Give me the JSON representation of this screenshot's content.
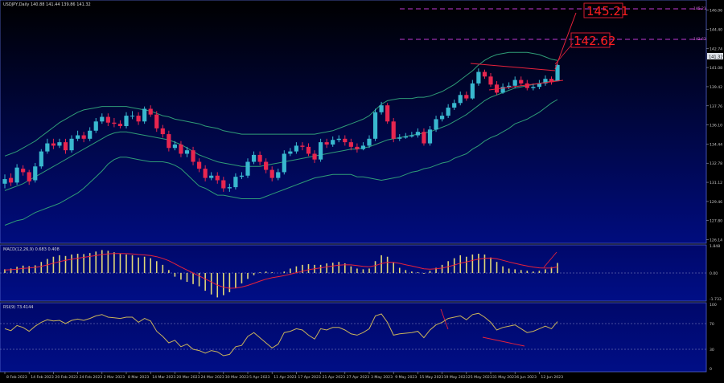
{
  "header": {
    "title": "USDJPY,Daily  140.88 141.44 139.86 141.32"
  },
  "macd_label": "MACD(12,26,9) 0.683 0.408",
  "rsi_label": "RSI(9) 73.4144",
  "annotations": {
    "target_1": "145.21",
    "target_2": "142.62",
    "line_1_price": "145.21",
    "line_2_price": "142.62",
    "current_price": "141.32"
  },
  "colors": {
    "bull": "#39b8cf",
    "bear": "#e8264f",
    "band": "#2f9c77",
    "macd_hist": "#e0d878",
    "signal": "#e8223a",
    "rsi": "#c9b45a",
    "level_line": "#c13ad1",
    "annotation": "#f01c1c"
  },
  "chart_data": [
    {
      "type": "candlestick",
      "ylim": [
        125.9,
        146.8
      ],
      "y_ticks": [
        "146.06",
        "144.40",
        "142.74",
        "141.08",
        "139.42",
        "137.76",
        "136.10",
        "134.44",
        "132.78",
        "131.12",
        "129.46",
        "127.80",
        "126.14"
      ],
      "y_tick_values": [
        146.06,
        144.4,
        142.74,
        141.08,
        139.42,
        137.76,
        136.1,
        134.44,
        132.78,
        131.12,
        129.46,
        127.8,
        126.14
      ],
      "x_labels": [
        "8 Feb 2023",
        "14 Feb 2023",
        "20 Feb 2023",
        "24 Feb 2023",
        "2 Mar 2023",
        "8 Mar 2023",
        "14 Mar 2023",
        "20 Mar 2023",
        "24 Mar 2023",
        "30 Mar 2023",
        "5 Apr 2023",
        "11 Apr 2023",
        "17 Apr 2023",
        "21 Apr 2023",
        "27 Apr 2023",
        "3 May 2023",
        "9 May 2023",
        "15 May 2023",
        "19 May 2023",
        "25 May 2023",
        "31 May 2023",
        "6 Jun 2023",
        "12 Jun 2023"
      ],
      "x_label_index": [
        0,
        4,
        8,
        12,
        16,
        20,
        24,
        28,
        32,
        36,
        40,
        44,
        48,
        52,
        56,
        60,
        64,
        68,
        72,
        76,
        80,
        84,
        88
      ],
      "close": [
        131.4,
        131.1,
        132.4,
        132.0,
        131.2,
        132.5,
        133.8,
        134.5,
        134.3,
        134.6,
        133.9,
        134.9,
        135.2,
        134.9,
        135.6,
        136.4,
        136.8,
        136.3,
        136.2,
        136.0,
        136.9,
        136.9,
        136.4,
        137.5,
        137.0,
        135.8,
        135.3,
        134.1,
        134.4,
        133.6,
        133.9,
        132.9,
        132.3,
        131.5,
        131.7,
        131.3,
        130.6,
        130.7,
        131.6,
        131.7,
        132.9,
        133.5,
        132.9,
        132.2,
        131.5,
        132.0,
        133.6,
        133.8,
        134.3,
        134.2,
        133.6,
        133.1,
        134.6,
        134.4,
        134.8,
        134.9,
        134.6,
        134.2,
        134.0,
        134.3,
        134.9,
        137.2,
        137.8,
        136.4,
        134.9,
        135.0,
        135.1,
        135.2,
        135.5,
        134.5,
        135.7,
        136.6,
        136.9,
        137.6,
        138.0,
        138.7,
        138.4,
        139.7,
        140.7,
        140.3,
        139.6,
        138.9,
        139.4,
        139.5,
        140.0,
        139.7,
        139.3,
        139.4,
        139.7,
        140.1,
        139.8,
        141.3
      ],
      "open": [
        131.0,
        131.5,
        131.1,
        132.3,
        132.0,
        131.3,
        132.5,
        133.8,
        134.5,
        134.3,
        134.6,
        133.9,
        134.9,
        135.2,
        134.9,
        135.6,
        136.4,
        136.8,
        136.3,
        136.2,
        136.0,
        136.9,
        136.9,
        136.4,
        137.5,
        137.0,
        135.8,
        135.3,
        134.1,
        134.4,
        133.6,
        133.9,
        132.9,
        132.3,
        131.5,
        131.7,
        131.3,
        130.6,
        130.7,
        131.6,
        131.7,
        132.9,
        133.5,
        132.9,
        132.2,
        131.5,
        132.0,
        133.6,
        133.8,
        134.3,
        134.2,
        133.6,
        133.1,
        134.6,
        134.4,
        134.8,
        134.9,
        134.6,
        134.2,
        134.0,
        134.3,
        134.9,
        137.2,
        137.8,
        136.4,
        134.9,
        135.0,
        135.1,
        135.2,
        135.5,
        134.5,
        135.7,
        136.6,
        136.9,
        137.6,
        138.0,
        138.7,
        138.4,
        139.7,
        140.7,
        140.3,
        139.6,
        138.9,
        139.4,
        139.5,
        140.0,
        139.7,
        139.3,
        139.4,
        139.7,
        140.1,
        139.9
      ],
      "high": [
        131.8,
        131.9,
        132.7,
        132.6,
        132.2,
        132.8,
        134.0,
        134.9,
        134.9,
        134.9,
        134.9,
        135.2,
        135.6,
        135.5,
        135.9,
        136.7,
        137.1,
        137.1,
        136.7,
        136.5,
        137.2,
        137.3,
        137.2,
        137.7,
        137.8,
        137.3,
        136.1,
        135.6,
        134.7,
        134.7,
        134.2,
        134.2,
        133.2,
        132.6,
        132.0,
        132.0,
        131.6,
        131.0,
        131.9,
        132.0,
        133.2,
        133.8,
        133.8,
        133.2,
        132.5,
        132.3,
        133.9,
        134.1,
        134.6,
        134.6,
        134.5,
        133.9,
        134.9,
        134.9,
        135.1,
        135.2,
        135.2,
        134.9,
        134.5,
        134.6,
        135.2,
        137.5,
        138.1,
        138.0,
        136.7,
        135.3,
        135.4,
        135.5,
        135.8,
        135.8,
        136.0,
        136.9,
        137.2,
        137.9,
        138.3,
        139.0,
        139.0,
        140.0,
        141.0,
        140.9,
        140.6,
        139.9,
        139.7,
        139.8,
        140.3,
        140.3,
        140.0,
        139.7,
        140.0,
        140.4,
        140.3,
        141.4
      ],
      "low": [
        130.6,
        130.8,
        130.9,
        131.7,
        130.9,
        131.1,
        132.3,
        133.6,
        134.0,
        134.1,
        133.6,
        133.7,
        134.7,
        134.6,
        134.7,
        135.4,
        136.2,
        136.0,
        135.9,
        135.8,
        135.8,
        136.6,
        136.1,
        136.2,
        136.8,
        135.5,
        135.0,
        133.8,
        133.9,
        133.3,
        133.3,
        132.6,
        132.0,
        131.2,
        131.3,
        131.0,
        130.3,
        130.3,
        130.5,
        131.4,
        131.5,
        132.7,
        132.6,
        131.9,
        131.2,
        131.3,
        131.8,
        133.4,
        133.6,
        133.9,
        133.4,
        132.8,
        132.9,
        134.1,
        134.2,
        134.6,
        134.3,
        133.9,
        133.7,
        133.9,
        134.1,
        134.7,
        137.0,
        136.2,
        134.6,
        134.7,
        134.9,
        135.0,
        135.0,
        134.3,
        134.3,
        135.5,
        136.4,
        136.7,
        137.4,
        137.8,
        138.2,
        138.3,
        139.5,
        140.1,
        139.4,
        138.7,
        138.8,
        139.2,
        139.3,
        139.5,
        139.1,
        139.1,
        139.2,
        139.5,
        139.6,
        139.9
      ],
      "bb_upper": [
        133.4,
        133.6,
        133.8,
        134.1,
        134.4,
        134.7,
        135.1,
        135.5,
        135.9,
        136.3,
        136.6,
        136.9,
        137.2,
        137.4,
        137.5,
        137.6,
        137.7,
        137.7,
        137.7,
        137.7,
        137.7,
        137.6,
        137.5,
        137.4,
        137.3,
        137.1,
        136.9,
        136.8,
        136.6,
        136.5,
        136.4,
        136.3,
        136.2,
        136.0,
        135.9,
        135.8,
        135.6,
        135.5,
        135.4,
        135.3,
        135.3,
        135.3,
        135.3,
        135.3,
        135.3,
        135.3,
        135.3,
        135.3,
        135.3,
        135.3,
        135.3,
        135.3,
        135.4,
        135.5,
        135.6,
        135.8,
        136.0,
        136.2,
        136.4,
        136.6,
        136.9,
        137.4,
        137.9,
        138.2,
        138.3,
        138.4,
        138.4,
        138.4,
        138.5,
        138.5,
        138.6,
        138.8,
        139.0,
        139.3,
        139.6,
        140.0,
        140.4,
        140.8,
        141.3,
        141.7,
        142.0,
        142.2,
        142.3,
        142.4,
        142.4,
        142.4,
        142.4,
        142.3,
        142.2,
        142.0,
        141.8,
        141.7
      ],
      "bb_middle": [
        130.4,
        130.6,
        130.8,
        131.0,
        131.3,
        131.6,
        131.9,
        132.2,
        132.5,
        132.8,
        133.1,
        133.4,
        133.7,
        134.0,
        134.3,
        134.6,
        134.9,
        135.2,
        135.4,
        135.5,
        135.5,
        135.4,
        135.3,
        135.2,
        135.1,
        135.0,
        134.9,
        134.8,
        134.6,
        134.4,
        134.1,
        133.8,
        133.5,
        133.3,
        133.1,
        132.9,
        132.8,
        132.7,
        132.6,
        132.5,
        132.5,
        132.5,
        132.5,
        132.6,
        132.7,
        132.8,
        132.9,
        133.0,
        133.1,
        133.2,
        133.3,
        133.4,
        133.5,
        133.6,
        133.7,
        133.8,
        133.9,
        134.0,
        134.0,
        134.1,
        134.2,
        134.4,
        134.6,
        134.8,
        134.9,
        135.0,
        135.1,
        135.2,
        135.3,
        135.4,
        135.5,
        135.7,
        135.9,
        136.1,
        136.4,
        136.7,
        137.0,
        137.4,
        137.8,
        138.2,
        138.5,
        138.7,
        138.9,
        139.1,
        139.3,
        139.4,
        139.5,
        139.6,
        139.7,
        139.8,
        139.9,
        140.0
      ],
      "bb_lower": [
        127.4,
        127.6,
        127.8,
        127.9,
        128.2,
        128.5,
        128.7,
        128.9,
        129.1,
        129.3,
        129.6,
        129.9,
        130.2,
        130.6,
        131.1,
        131.6,
        132.1,
        132.7,
        133.1,
        133.3,
        133.3,
        133.2,
        133.1,
        133.0,
        132.9,
        132.9,
        132.9,
        132.8,
        132.6,
        132.3,
        131.8,
        131.3,
        130.8,
        130.6,
        130.3,
        130.0,
        130.0,
        129.9,
        129.8,
        129.7,
        129.7,
        129.7,
        129.7,
        129.9,
        130.1,
        130.3,
        130.5,
        130.7,
        130.9,
        131.1,
        131.3,
        131.5,
        131.6,
        131.7,
        131.8,
        131.8,
        131.8,
        131.8,
        131.6,
        131.6,
        131.5,
        131.4,
        131.3,
        131.4,
        131.5,
        131.6,
        131.8,
        132.0,
        132.1,
        132.3,
        132.4,
        132.6,
        132.8,
        132.9,
        133.2,
        133.4,
        133.6,
        134.0,
        134.3,
        134.7,
        135.0,
        135.2,
        135.5,
        135.8,
        136.2,
        136.4,
        136.6,
        136.9,
        137.2,
        137.6,
        138.0,
        138.3
      ]
    },
    {
      "type": "bar",
      "name": "MACD",
      "ylim": [
        -1.9,
        1.9
      ],
      "y_ticks": [
        "1.848",
        "0.00",
        "-1.733"
      ],
      "y_tick_values": [
        1.848,
        0.0,
        -1.733
      ],
      "values": [
        0.25,
        0.3,
        0.42,
        0.5,
        0.46,
        0.52,
        0.75,
        0.95,
        1.1,
        1.2,
        1.15,
        1.25,
        1.3,
        1.28,
        1.35,
        1.45,
        1.55,
        1.5,
        1.4,
        1.3,
        1.25,
        1.2,
        1.05,
        1.1,
        1.0,
        0.8,
        0.55,
        0.2,
        -0.25,
        -0.45,
        -0.6,
        -0.75,
        -0.9,
        -1.2,
        -1.45,
        -1.65,
        -1.5,
        -1.3,
        -1.0,
        -0.7,
        -0.4,
        -0.15,
        0.05,
        0.1,
        0.05,
        0.0,
        0.1,
        0.3,
        0.45,
        0.55,
        0.6,
        0.55,
        0.55,
        0.65,
        0.7,
        0.75,
        0.65,
        0.45,
        0.3,
        0.25,
        0.3,
        0.8,
        1.2,
        1.1,
        0.7,
        0.35,
        0.2,
        0.1,
        0.05,
        -0.05,
        0.15,
        0.35,
        0.55,
        0.8,
        1.0,
        1.2,
        1.1,
        1.25,
        1.3,
        1.25,
        1.05,
        0.75,
        0.45,
        0.3,
        0.25,
        0.2,
        0.15,
        0.1,
        0.15,
        0.25,
        0.4,
        0.68
      ],
      "signal": [
        0.2,
        0.22,
        0.26,
        0.31,
        0.34,
        0.38,
        0.45,
        0.55,
        0.66,
        0.77,
        0.85,
        0.93,
        1.0,
        1.06,
        1.12,
        1.18,
        1.25,
        1.3,
        1.32,
        1.32,
        1.31,
        1.29,
        1.25,
        1.22,
        1.18,
        1.1,
        0.99,
        0.83,
        0.62,
        0.4,
        0.2,
        0.0,
        -0.2,
        -0.4,
        -0.61,
        -0.82,
        -0.96,
        -1.03,
        -1.02,
        -0.95,
        -0.84,
        -0.7,
        -0.55,
        -0.42,
        -0.32,
        -0.25,
        -0.18,
        -0.08,
        0.02,
        0.12,
        0.22,
        0.29,
        0.35,
        0.41,
        0.47,
        0.53,
        0.56,
        0.55,
        0.5,
        0.45,
        0.42,
        0.5,
        0.64,
        0.73,
        0.72,
        0.65,
        0.56,
        0.47,
        0.38,
        0.29,
        0.26,
        0.28,
        0.33,
        0.43,
        0.54,
        0.67,
        0.75,
        0.85,
        0.94,
        1.0,
        1.01,
        0.96,
        0.86,
        0.75,
        0.65,
        0.56,
        0.48,
        0.4,
        0.35,
        0.33,
        0.34,
        0.41
      ]
    },
    {
      "type": "line",
      "name": "RSI",
      "ylim": [
        0,
        100
      ],
      "y_ticks": [
        "100",
        "70",
        "30",
        "0"
      ],
      "y_tick_values": [
        100,
        70,
        30,
        0
      ],
      "values": [
        62,
        59,
        67,
        64,
        58,
        66,
        72,
        76,
        74,
        75,
        70,
        75,
        77,
        75,
        78,
        82,
        84,
        80,
        79,
        78,
        80,
        80,
        72,
        78,
        74,
        58,
        50,
        40,
        44,
        34,
        38,
        30,
        28,
        24,
        28,
        26,
        20,
        22,
        34,
        36,
        50,
        56,
        48,
        40,
        32,
        38,
        56,
        58,
        62,
        60,
        52,
        46,
        62,
        60,
        64,
        64,
        60,
        54,
        52,
        56,
        62,
        82,
        85,
        72,
        52,
        54,
        55,
        56,
        58,
        48,
        60,
        68,
        72,
        78,
        80,
        82,
        76,
        84,
        86,
        80,
        72,
        60,
        64,
        66,
        68,
        62,
        56,
        58,
        62,
        66,
        62,
        73
      ]
    }
  ]
}
